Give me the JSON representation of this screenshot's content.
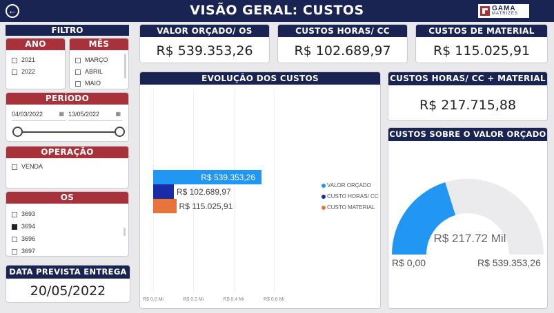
{
  "header": {
    "title": "VISÃO GERAL: CUSTOS",
    "logo_text": "GAMA",
    "logo_sub": "MATRIZES"
  },
  "filter": {
    "title": "FILTRO",
    "ano": {
      "title": "ANO",
      "items": [
        "2021",
        "2022"
      ]
    },
    "mes": {
      "title": "MÊS",
      "items": [
        "MARÇO",
        "ABRIL",
        "MAIO"
      ]
    },
    "periodo": {
      "title": "PERÍODO",
      "start": "04/03/2022",
      "end": "13/05/2022"
    },
    "operacao": {
      "title": "OPERAÇÃO",
      "items": [
        "VENDA"
      ]
    },
    "os": {
      "title": "OS",
      "items": [
        "3693",
        "3694",
        "3696",
        "3697"
      ],
      "checked": "3694"
    }
  },
  "delivery": {
    "title": "DATA PREVISTA ENTREGA",
    "value": "20/05/2022"
  },
  "kpis": {
    "valor_orcado": {
      "title": "VALOR ORÇADO/ OS",
      "value": "R$ 539.353,26"
    },
    "custos_horas": {
      "title": "CUSTOS HORAS/ CC",
      "value": "R$ 102.689,97"
    },
    "custos_material": {
      "title": "CUSTOS DE MATERIAL",
      "value": "R$ 115.025,91"
    },
    "custos_total": {
      "title": "CUSTOS HORAS/ CC + MATERIAL",
      "value": "R$ 217.715,88"
    }
  },
  "chart_data": [
    {
      "type": "bar",
      "orientation": "horizontal",
      "title": "EVOLUÇÃO DOS CUSTOS",
      "categories": [
        "VALOR ORÇADO",
        "CUSTO HORAS/ CC",
        "CUSTO MATERIAL"
      ],
      "values": [
        539353.26,
        102689.97,
        115025.91
      ],
      "data_labels": [
        "R$ 539.353,26",
        "R$ 102.689,97",
        "R$ 115.025,91"
      ],
      "colors": [
        "#2196f3",
        "#1a2ba8",
        "#e8743b"
      ],
      "x_ticks": [
        "R$ 0,0 Mi",
        "R$ 0,2 Mi",
        "R$ 0,4 Mi",
        "R$ 0,6 Mi"
      ],
      "xlim": [
        0,
        600000
      ],
      "legend": "right"
    },
    {
      "type": "gauge",
      "title": "CUSTOS SOBRE O VALOR ORÇADO",
      "value": 217715.88,
      "max": 539353.26,
      "value_label": "R$ 217.72 Mil",
      "min_label": "R$ 0,00",
      "max_label": "R$ 539.353,26",
      "fill_color": "#2196f3",
      "track_color": "#ebebee"
    }
  ]
}
